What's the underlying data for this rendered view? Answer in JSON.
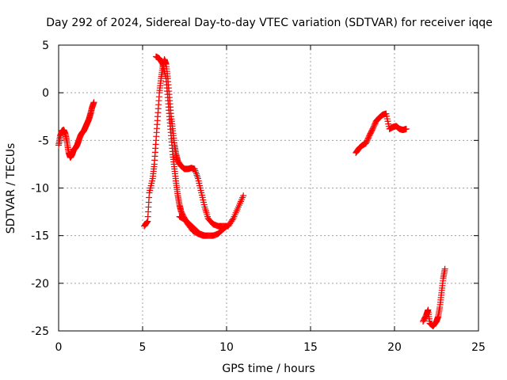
{
  "chart_data": {
    "type": "scatter",
    "title": "Day 292 of 2024, Sidereal Day-to-day VTEC variation (SDTVAR) for receiver iqqe",
    "xlabel": "GPS time / hours",
    "ylabel": "SDTVAR / TECUs",
    "xlim": [
      0,
      25
    ],
    "ylim": [
      -25,
      5
    ],
    "xticks": [
      0,
      5,
      10,
      15,
      20,
      25
    ],
    "yticks": [
      5,
      0,
      -5,
      -10,
      -15,
      -20,
      -25
    ],
    "grid": true,
    "marker": "+",
    "series": [
      {
        "name": "segment-1",
        "color": "#ff0000",
        "points": [
          [
            0.0,
            -5.5
          ],
          [
            0.1,
            -4.5
          ],
          [
            0.2,
            -4.0
          ],
          [
            0.3,
            -3.9
          ],
          [
            0.4,
            -4.3
          ],
          [
            0.5,
            -5.2
          ],
          [
            0.6,
            -6.3
          ],
          [
            0.7,
            -6.8
          ],
          [
            0.8,
            -6.5
          ],
          [
            0.9,
            -6.0
          ],
          [
            1.0,
            -5.8
          ],
          [
            1.1,
            -5.5
          ],
          [
            1.2,
            -5.0
          ],
          [
            1.3,
            -4.5
          ],
          [
            1.4,
            -4.2
          ],
          [
            1.5,
            -4.0
          ],
          [
            1.6,
            -3.6
          ],
          [
            1.7,
            -3.2
          ],
          [
            1.8,
            -2.8
          ],
          [
            1.9,
            -2.2
          ],
          [
            2.0,
            -1.5
          ],
          [
            2.1,
            -1.0
          ]
        ]
      },
      {
        "name": "segment-2",
        "color": "#ff0000",
        "points": [
          [
            5.1,
            -14.0
          ],
          [
            5.3,
            -13.5
          ],
          [
            5.4,
            -10.5
          ],
          [
            5.6,
            -9.0
          ],
          [
            5.7,
            -7.5
          ],
          [
            5.8,
            -5.0
          ],
          [
            5.9,
            -2.5
          ],
          [
            6.0,
            0.0
          ],
          [
            6.1,
            1.5
          ],
          [
            6.2,
            2.8
          ],
          [
            6.3,
            3.5
          ],
          [
            6.4,
            3.0
          ],
          [
            6.5,
            1.5
          ],
          [
            6.6,
            -0.5
          ],
          [
            6.7,
            -2.5
          ],
          [
            6.8,
            -4.0
          ],
          [
            6.9,
            -5.5
          ],
          [
            7.0,
            -6.5
          ],
          [
            7.1,
            -7.2
          ],
          [
            7.3,
            -7.7
          ],
          [
            7.5,
            -8.0
          ],
          [
            7.7,
            -8.0
          ],
          [
            7.9,
            -7.9
          ],
          [
            8.1,
            -8.0
          ],
          [
            8.3,
            -9.0
          ],
          [
            8.5,
            -10.5
          ],
          [
            8.7,
            -12.0
          ],
          [
            8.9,
            -13.2
          ],
          [
            9.2,
            -13.8
          ],
          [
            9.5,
            -14.0
          ],
          [
            9.8,
            -14.0
          ],
          [
            10.1,
            -14.0
          ],
          [
            10.4,
            -13.2
          ],
          [
            10.7,
            -12.0
          ],
          [
            11.0,
            -10.8
          ]
        ]
      },
      {
        "name": "segment-3",
        "color": "#ff0000",
        "points": [
          [
            5.8,
            3.8
          ],
          [
            6.0,
            3.6
          ],
          [
            6.2,
            3.0
          ],
          [
            6.4,
            1.5
          ],
          [
            6.5,
            -0.5
          ],
          [
            6.6,
            -2.5
          ],
          [
            6.7,
            -4.5
          ],
          [
            6.8,
            -6.5
          ],
          [
            6.9,
            -8.0
          ],
          [
            7.0,
            -9.5
          ],
          [
            7.1,
            -10.8
          ],
          [
            7.2,
            -11.8
          ],
          [
            7.3,
            -12.5
          ],
          [
            7.5,
            -13.2
          ],
          [
            7.7,
            -13.8
          ],
          [
            8.0,
            -14.5
          ],
          [
            8.3,
            -14.8
          ],
          [
            8.6,
            -15.0
          ],
          [
            8.9,
            -15.0
          ],
          [
            9.2,
            -15.0
          ],
          [
            9.5,
            -14.8
          ],
          [
            9.8,
            -14.3
          ],
          [
            10.0,
            -14.0
          ]
        ]
      },
      {
        "name": "segment-4",
        "color": "#ff0000",
        "points": [
          [
            7.2,
            -13.0
          ],
          [
            7.5,
            -13.3
          ],
          [
            7.8,
            -13.8
          ],
          [
            8.1,
            -14.3
          ],
          [
            8.4,
            -14.8
          ],
          [
            8.7,
            -15.0
          ]
        ]
      },
      {
        "name": "segment-5",
        "color": "#ff0000",
        "points": [
          [
            17.7,
            -6.3
          ],
          [
            17.9,
            -5.8
          ],
          [
            18.1,
            -5.5
          ],
          [
            18.3,
            -5.3
          ],
          [
            18.5,
            -4.5
          ],
          [
            18.7,
            -3.8
          ],
          [
            18.9,
            -3.0
          ],
          [
            19.1,
            -2.6
          ],
          [
            19.3,
            -2.3
          ],
          [
            19.5,
            -2.2
          ],
          [
            19.7,
            -3.8
          ],
          [
            19.9,
            -3.6
          ],
          [
            20.1,
            -3.5
          ],
          [
            20.3,
            -3.8
          ],
          [
            20.5,
            -3.9
          ],
          [
            20.7,
            -3.8
          ]
        ]
      },
      {
        "name": "segment-6",
        "color": "#ff0000",
        "points": [
          [
            21.7,
            -24.0
          ],
          [
            21.9,
            -23.3
          ],
          [
            22.0,
            -22.8
          ],
          [
            22.1,
            -24.2
          ],
          [
            22.3,
            -24.5
          ],
          [
            22.5,
            -24.0
          ],
          [
            22.6,
            -23.5
          ],
          [
            22.7,
            -22.5
          ],
          [
            22.8,
            -21.0
          ],
          [
            22.9,
            -19.5
          ],
          [
            23.0,
            -18.5
          ]
        ]
      }
    ]
  }
}
